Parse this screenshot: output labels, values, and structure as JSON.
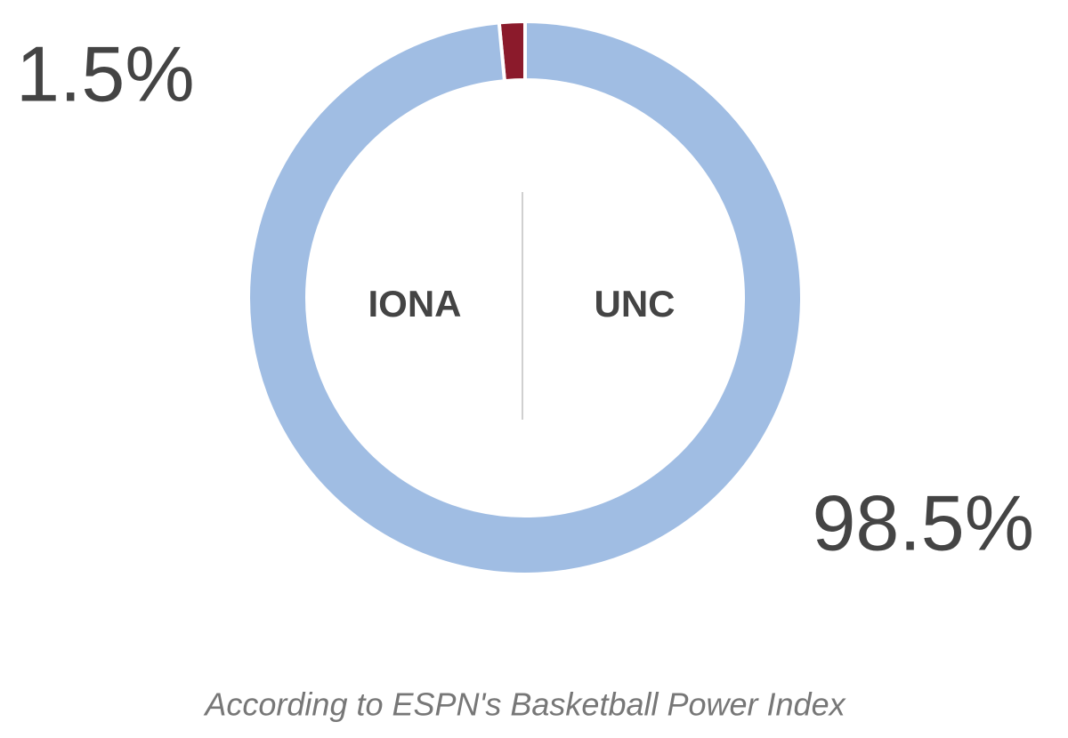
{
  "chart_data": {
    "type": "donut",
    "categories": [
      "IONA",
      "UNC"
    ],
    "values": [
      1.5,
      98.5
    ],
    "value_labels": [
      "1.5%",
      "98.5%"
    ],
    "colors": [
      "#8b1a2b",
      "#a0bde3"
    ],
    "note": "According to ESPN's Basketball Power Index"
  }
}
